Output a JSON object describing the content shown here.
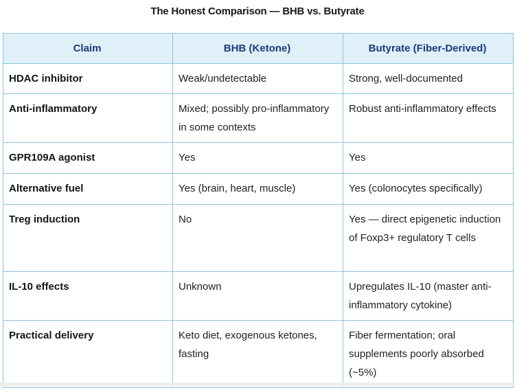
{
  "title": "The Honest Comparison — BHB vs. Butyrate",
  "table": {
    "headers": [
      "Claim",
      "BHB (Ketone)",
      "Butyrate (Fiber-Derived)"
    ],
    "rows": [
      {
        "claim": "HDAC inhibitor",
        "bhb": "Weak/undetectable",
        "butyrate": "Strong, well-documented"
      },
      {
        "claim": "Anti-inflammatory",
        "bhb": "Mixed; possibly pro-inflammatory in some contexts",
        "butyrate": "Robust anti-inflammatory effects"
      },
      {
        "claim": "GPR109A agonist",
        "bhb": "Yes",
        "butyrate": "Yes"
      },
      {
        "claim": "Alternative fuel",
        "bhb": "Yes (brain, heart, muscle)",
        "butyrate": "Yes (colonocytes specifically)"
      },
      {
        "claim": "Treg induction",
        "bhb": "No",
        "butyrate": "Yes — direct epigenetic induction of Foxp3+ regulatory T cells"
      },
      {
        "claim": "IL-10 effects",
        "bhb": "Unknown",
        "butyrate": "Upregulates IL-10 (master anti-inflammatory cytokine)"
      },
      {
        "claim": "Practical delivery",
        "bhb": "Keto diet, exogenous ketones, fasting",
        "butyrate": "Fiber fermentation; oral supplements poorly absorbed (~5%)"
      }
    ]
  },
  "colors": {
    "header_bg": "#dff0f8",
    "header_text": "#1c3a7a",
    "border": "#8cc4d8"
  }
}
